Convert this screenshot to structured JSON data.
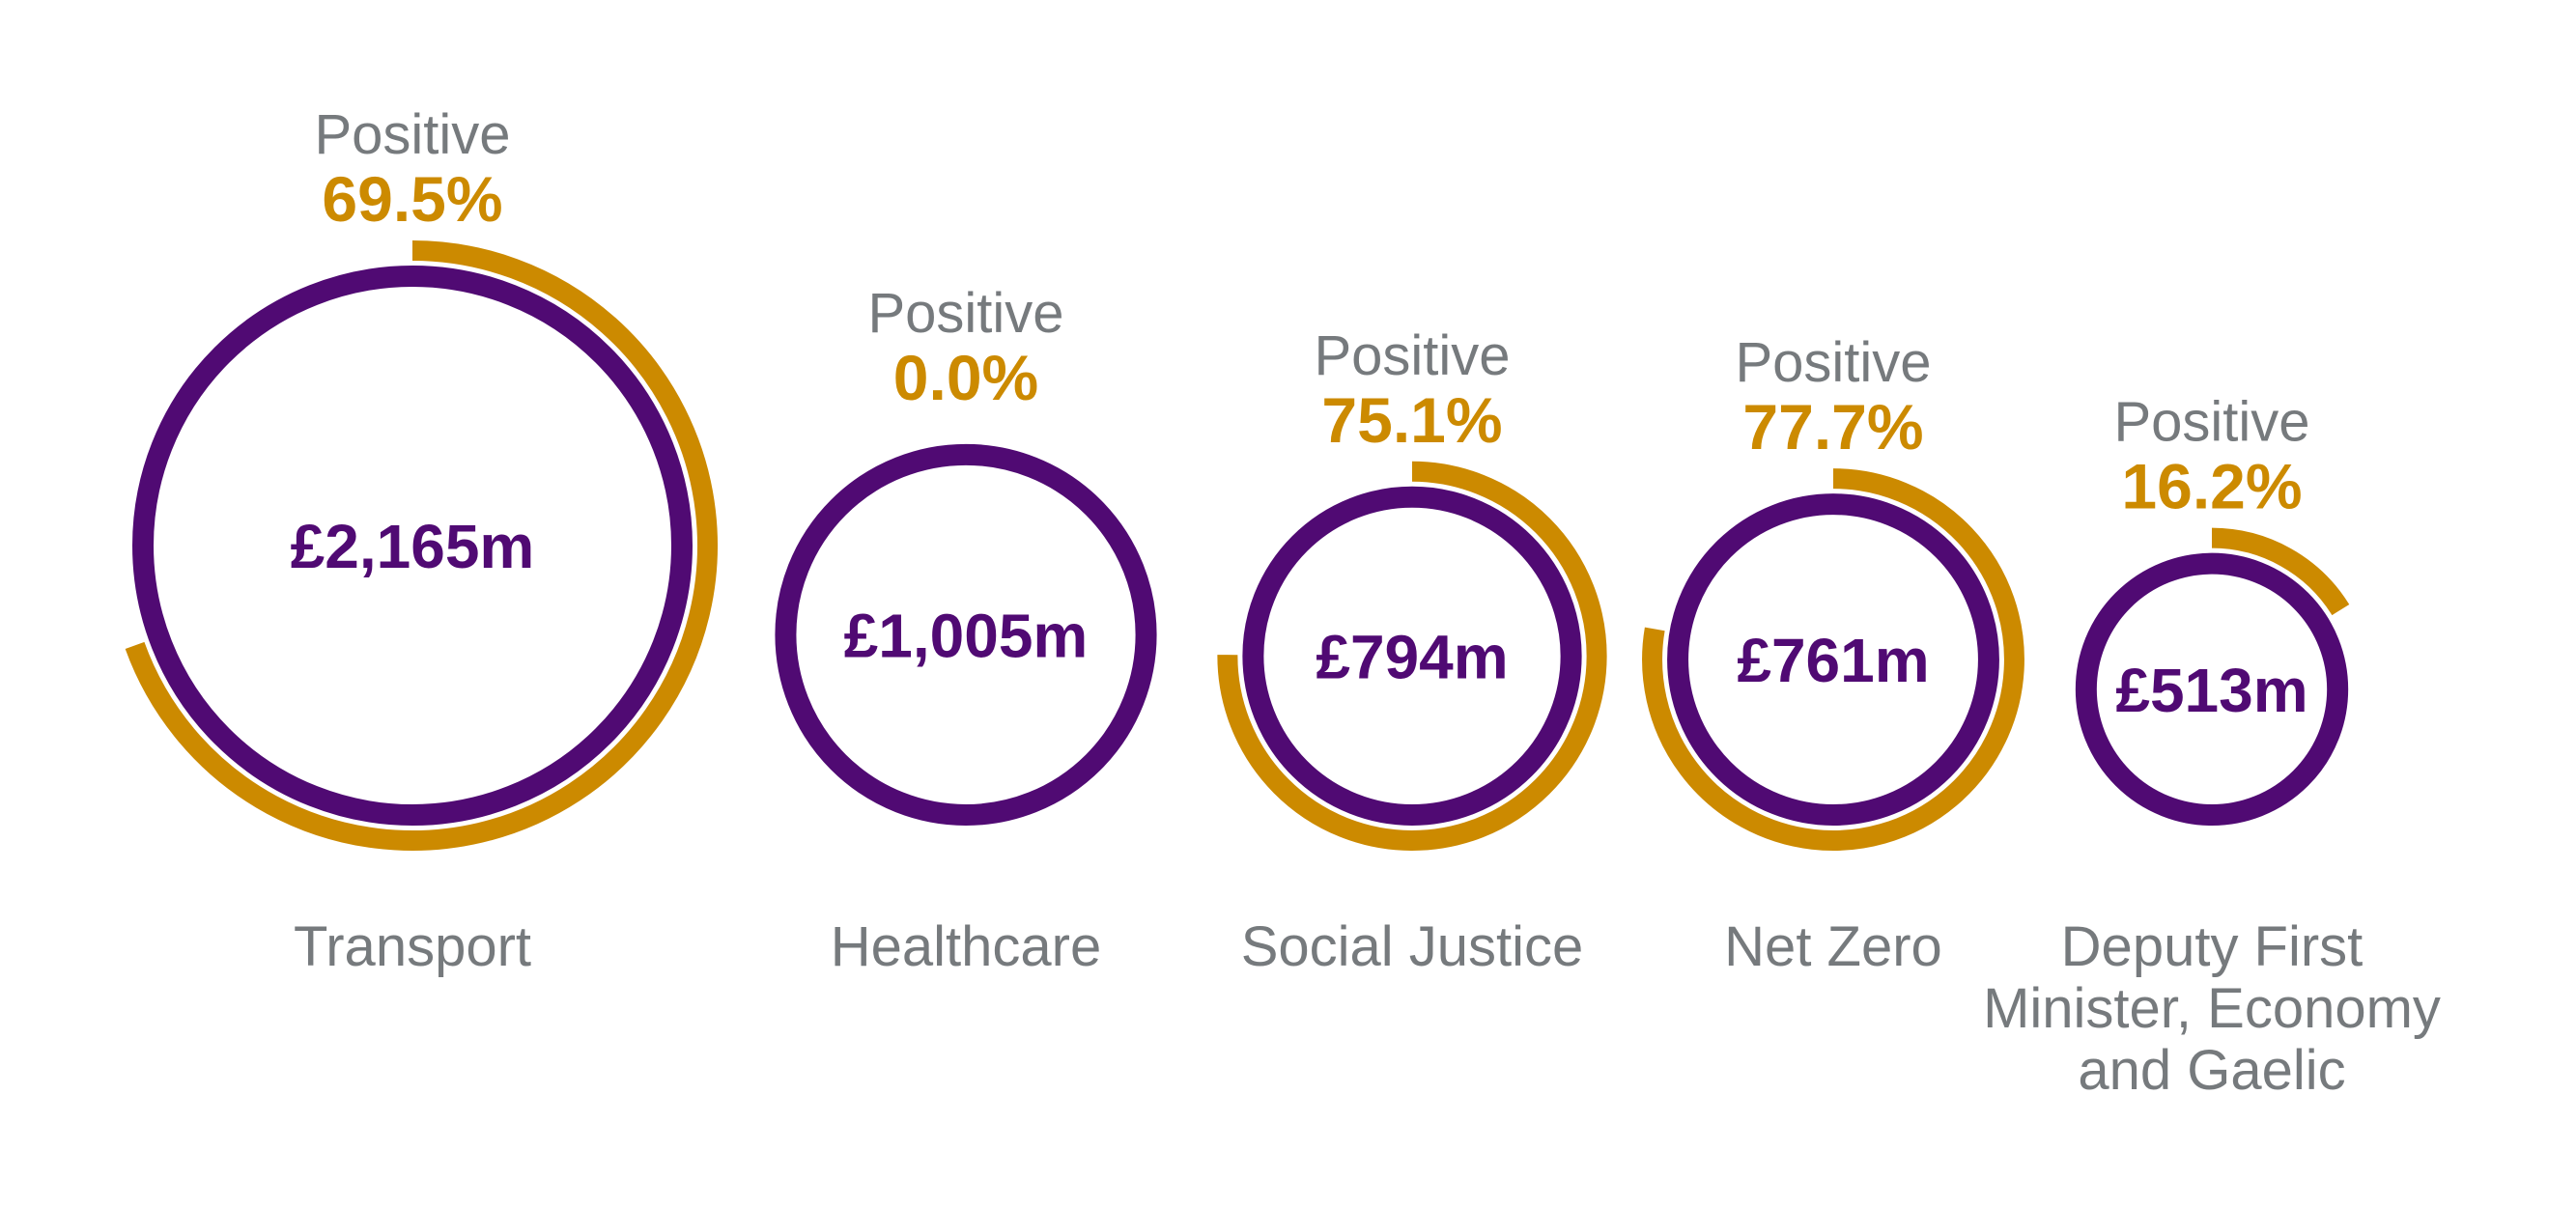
{
  "chart_data": {
    "type": "donut-bubble",
    "title": "",
    "colors": {
      "total_ring": "#500a73",
      "positive_arc": "#cc8a00",
      "text": "#767a7d"
    },
    "series_label": "Positive",
    "categories": [
      {
        "label": [
          "Transport"
        ],
        "value": 2165,
        "value_label": "£2,165m",
        "positive_pct": 69.5,
        "positive_label": "69.5%"
      },
      {
        "label": [
          "Healthcare"
        ],
        "value": 1005,
        "value_label": "£1,005m",
        "positive_pct": 0.0,
        "positive_label": "0.0%"
      },
      {
        "label": [
          "Social Justice"
        ],
        "value": 794,
        "value_label": "£794m",
        "positive_pct": 75.1,
        "positive_label": "75.1%"
      },
      {
        "label": [
          "Net Zero"
        ],
        "value": 761,
        "value_label": "£761m",
        "positive_pct": 77.7,
        "positive_label": "77.7%"
      },
      {
        "label": [
          "Deputy First",
          "Minister, Economy",
          "and Gaelic"
        ],
        "value": 513,
        "value_label": "£513m",
        "positive_pct": 16.2,
        "positive_label": "16.2%"
      }
    ]
  }
}
